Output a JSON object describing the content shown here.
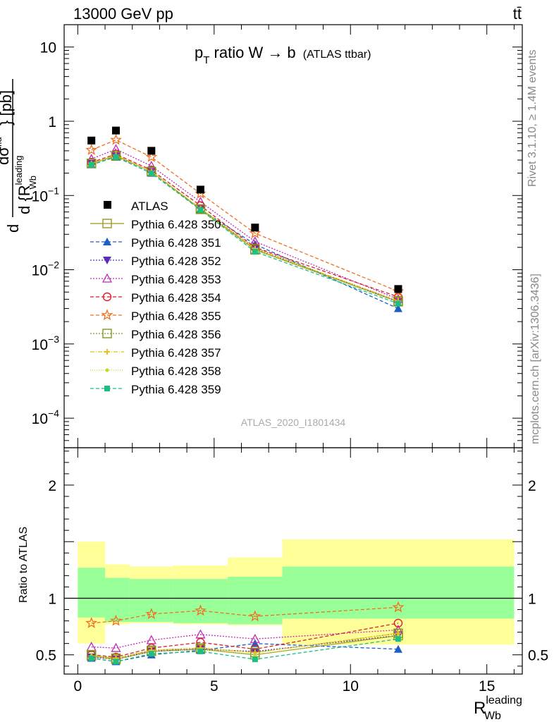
{
  "header": {
    "energy_label": "13000 GeV pp",
    "process_label": "tt̄"
  },
  "side": {
    "rivet_label": "Rivet 3.1.10, ≥ 1.4M events",
    "mcplots_label": "mcplots.cern.ch [arXiv:1306.3436]"
  },
  "chart_data": [
    {
      "panel": "main",
      "type": "scatter",
      "title_main": "p",
      "title_sub": "T",
      "title_rest": " ratio W → b",
      "title_small": "(ATLAS ttbar)",
      "ylabel": "d σ^fid / d {R_Wb^leading} [pb]",
      "ylabel_parts": {
        "d": "d",
        "sigma": "dσ",
        "fid": "fid",
        "denom": "d {R",
        "sup": "leading",
        "sub": "Wb",
        "close": "} [pb]"
      },
      "yscale": "log",
      "ylim": [
        4e-05,
        20
      ],
      "xlim": [
        -0.5,
        16.3
      ],
      "yticks": [
        {
          "value": 10,
          "base": "10",
          "exp": ""
        },
        {
          "value": 1,
          "base": "1",
          "exp": ""
        },
        {
          "value": 0.1,
          "base": "10",
          "exp": "−1"
        },
        {
          "value": 0.01,
          "base": "10",
          "exp": "−2"
        },
        {
          "value": 0.001,
          "base": "10",
          "exp": "−3"
        },
        {
          "value": 0.0001,
          "base": "10",
          "exp": "−4"
        }
      ],
      "watermark": "ATLAS_2020_I1801434",
      "legend_position": "center-left",
      "x": [
        0.5,
        1.4,
        2.7,
        4.5,
        6.5,
        11.75
      ],
      "data": {
        "name": "ATLAS",
        "values": [
          0.55,
          0.75,
          0.4,
          0.12,
          0.037,
          0.0055
        ]
      },
      "series": [
        {
          "name": "Pythia 6.428 350",
          "color": "#9a9a22",
          "dash": "",
          "marker": "square-open",
          "values": [
            0.27,
            0.34,
            0.21,
            0.065,
            0.0185,
            0.0037
          ]
        },
        {
          "name": "Pythia 6.428 351",
          "color": "#1d5fc0",
          "dash": "5,3",
          "marker": "triangle-up",
          "values": [
            0.26,
            0.33,
            0.2,
            0.065,
            0.022,
            0.003
          ]
        },
        {
          "name": "Pythia 6.428 352",
          "color": "#5a2dbd",
          "dash": "2,2",
          "marker": "triangle-down",
          "values": [
            0.27,
            0.34,
            0.21,
            0.066,
            0.0195,
            0.0037
          ]
        },
        {
          "name": "Pythia 6.428 353",
          "color": "#bd2db5",
          "dash": "2,2",
          "marker": "triangle-up-open",
          "values": [
            0.31,
            0.42,
            0.25,
            0.082,
            0.024,
            0.004
          ]
        },
        {
          "name": "Pythia 6.428 354",
          "color": "#dd1f2a",
          "dash": "5,3",
          "marker": "circle-open",
          "values": [
            0.28,
            0.36,
            0.22,
            0.073,
            0.02,
            0.0043
          ]
        },
        {
          "name": "Pythia 6.428 355",
          "color": "#f07020",
          "dash": "5,3",
          "marker": "star-open",
          "values": [
            0.41,
            0.56,
            0.33,
            0.106,
            0.031,
            0.0051
          ]
        },
        {
          "name": "Pythia 6.428 356",
          "color": "#7a9a1f",
          "dash": "2,2",
          "marker": "square-open",
          "values": [
            0.27,
            0.34,
            0.21,
            0.066,
            0.019,
            0.0038
          ]
        },
        {
          "name": "Pythia 6.428 357",
          "color": "#e8c21a",
          "dash": "6,2,1,2",
          "marker": "cross",
          "values": [
            0.27,
            0.35,
            0.21,
            0.067,
            0.0192,
            0.0038
          ]
        },
        {
          "name": "Pythia 6.428 358",
          "color": "#c7d52a",
          "dash": "1,2",
          "marker": "dot",
          "values": [
            0.27,
            0.34,
            0.21,
            0.066,
            0.0185,
            0.0037
          ]
        },
        {
          "name": "Pythia 6.428 359",
          "color": "#1fbf82",
          "dash": "5,3",
          "marker": "square",
          "values": [
            0.26,
            0.33,
            0.2,
            0.064,
            0.0175,
            0.0035
          ]
        }
      ]
    },
    {
      "panel": "ratio",
      "type": "scatter",
      "ylabel": "Ratio to ATLAS",
      "xlabel_base": "R",
      "xlabel_sup": "leading",
      "xlabel_sub": "Wb",
      "ylim": [
        0.33,
        2.33
      ],
      "xlim": [
        -0.5,
        16.3
      ],
      "xticks": [
        0,
        5,
        10,
        15
      ],
      "yticks": [
        0.5,
        1,
        2
      ],
      "bins": [
        {
          "lo": 0.0,
          "hi": 1.0,
          "green": [
            0.83,
            1.27
          ],
          "yellow": [
            0.6,
            1.5
          ]
        },
        {
          "lo": 1.0,
          "hi": 1.9,
          "green": [
            0.79,
            1.18
          ],
          "yellow": [
            0.77,
            1.3
          ]
        },
        {
          "lo": 1.9,
          "hi": 3.5,
          "green": [
            0.79,
            1.17
          ],
          "yellow": [
            0.78,
            1.28
          ]
        },
        {
          "lo": 3.5,
          "hi": 5.5,
          "green": [
            0.78,
            1.17
          ],
          "yellow": [
            0.77,
            1.29
          ]
        },
        {
          "lo": 5.5,
          "hi": 7.5,
          "green": [
            0.77,
            1.19
          ],
          "yellow": [
            0.76,
            1.36
          ]
        },
        {
          "lo": 7.5,
          "hi": 16.0,
          "green": [
            0.82,
            1.28
          ],
          "yellow": [
            0.59,
            1.52
          ]
        }
      ],
      "x": [
        0.5,
        1.4,
        2.7,
        4.5,
        6.5,
        11.75
      ],
      "series": [
        {
          "name": "Pythia 6.428 350",
          "values": [
            0.49,
            0.46,
            0.53,
            0.55,
            0.5,
            0.67
          ]
        },
        {
          "name": "Pythia 6.428 351",
          "values": [
            0.47,
            0.44,
            0.5,
            0.54,
            0.6,
            0.55
          ]
        },
        {
          "name": "Pythia 6.428 352",
          "values": [
            0.48,
            0.46,
            0.53,
            0.55,
            0.53,
            0.67
          ]
        },
        {
          "name": "Pythia 6.428 353",
          "values": [
            0.57,
            0.56,
            0.63,
            0.68,
            0.64,
            0.72
          ]
        },
        {
          "name": "Pythia 6.428 354",
          "values": [
            0.5,
            0.48,
            0.56,
            0.61,
            0.55,
            0.78
          ]
        },
        {
          "name": "Pythia 6.428 355",
          "values": [
            0.78,
            0.8,
            0.86,
            0.89,
            0.84,
            0.92
          ]
        },
        {
          "name": "Pythia 6.428 356",
          "values": [
            0.5,
            0.47,
            0.54,
            0.56,
            0.52,
            0.69
          ]
        },
        {
          "name": "Pythia 6.428 357",
          "values": [
            0.49,
            0.47,
            0.54,
            0.56,
            0.52,
            0.69
          ]
        },
        {
          "name": "Pythia 6.428 358",
          "values": [
            0.49,
            0.46,
            0.53,
            0.55,
            0.5,
            0.67
          ]
        },
        {
          "name": "Pythia 6.428 359",
          "values": [
            0.47,
            0.44,
            0.51,
            0.53,
            0.46,
            0.64
          ]
        }
      ]
    }
  ]
}
